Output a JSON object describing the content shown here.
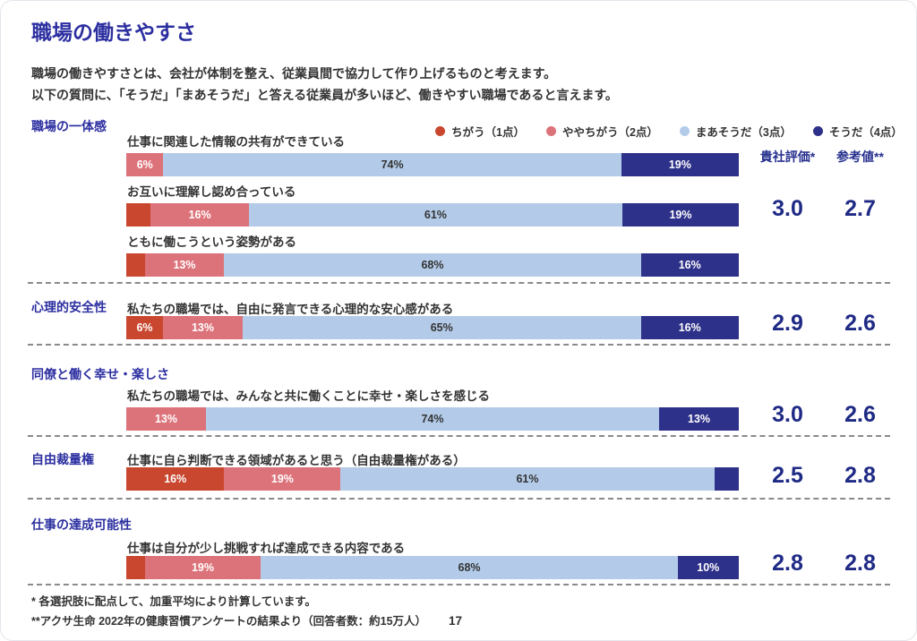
{
  "page": {
    "title": "職場の働きやすさ",
    "intro_line1": "職場の働きやすさとは、会社が体制を整え、従業員間で協力して作り上げるものと考えます。",
    "intro_line2": "以下の質問に、「そうだ」「まあそうだ」と答える従業員が多いほど、働きやすい職場であると言えます。",
    "footnote1": "* 各選択肢に配点して、加重平均により計算しています。",
    "footnote2": "**アクサ生命 2022年の健康習慣アンケートの結果より（回答者数：約15万人）",
    "page_number": "17"
  },
  "score_headers": {
    "company": "貴社評価*",
    "reference": "参考値**"
  },
  "sections": [
    {
      "label": "職場の一体感",
      "company_score": "3.0",
      "reference_score": "2.7"
    },
    {
      "label": "心理的安全性",
      "company_score": "2.9",
      "reference_score": "2.6"
    },
    {
      "label": "同僚と働く幸せ・楽しさ",
      "company_score": "3.0",
      "reference_score": "2.6"
    },
    {
      "label": "自由裁量権",
      "company_score": "2.5",
      "reference_score": "2.8"
    },
    {
      "label": "仕事の達成可能性",
      "company_score": "2.8",
      "reference_score": "2.8"
    }
  ],
  "chart_data": {
    "type": "bar",
    "orientation": "horizontal-stacked",
    "unit": "%",
    "xlim": [
      0,
      100
    ],
    "legend_position": "top-right",
    "series": [
      {
        "name": "ちがう（1点）",
        "color": "#c9472f"
      },
      {
        "name": "ややちがう（2点）",
        "color": "#dd737a"
      },
      {
        "name": "まあそうだ（3点）",
        "color": "#b3cbe8"
      },
      {
        "name": "そうだ（4点）",
        "color": "#2e3189"
      }
    ],
    "rows": [
      {
        "section": "職場の一体感",
        "question": "仕事に関連した情報の共有ができている",
        "values": [
          0,
          6,
          74,
          19
        ],
        "labels": [
          "",
          "6%",
          "74%",
          "19%"
        ]
      },
      {
        "section": "職場の一体感",
        "question": "お互いに理解し認め合っている",
        "values": [
          4,
          16,
          61,
          19
        ],
        "labels": [
          "",
          "16%",
          "61%",
          "19%"
        ]
      },
      {
        "section": "職場の一体感",
        "question": "ともに働こうという姿勢がある",
        "values": [
          3,
          13,
          68,
          16
        ],
        "labels": [
          "",
          "13%",
          "68%",
          "16%"
        ]
      },
      {
        "section": "心理的安全性",
        "question": "私たちの職場では、自由に発言できる心理的な安心感がある",
        "values": [
          6,
          13,
          65,
          16
        ],
        "labels": [
          "6%",
          "13%",
          "65%",
          "16%"
        ]
      },
      {
        "section": "同僚と働く幸せ・楽しさ",
        "question": "私たちの職場では、みんなと共に働くことに幸せ・楽しさを感じる",
        "values": [
          0,
          13,
          74,
          13
        ],
        "labels": [
          "",
          "13%",
          "74%",
          "13%"
        ]
      },
      {
        "section": "自由裁量権",
        "question": "仕事に自ら判断できる領域があると思う（自由裁量権がある）",
        "values": [
          16,
          19,
          61,
          4
        ],
        "labels": [
          "16%",
          "19%",
          "61%",
          ""
        ]
      },
      {
        "section": "仕事の達成可能性",
        "question": "仕事は自分が少し挑戦すれば達成できる内容である",
        "values": [
          3,
          19,
          68,
          10
        ],
        "labels": [
          "",
          "19%",
          "68%",
          "10%"
        ]
      }
    ],
    "scores": [
      {
        "section": "職場の一体感",
        "company": 3.0,
        "reference": 2.7
      },
      {
        "section": "心理的安全性",
        "company": 2.9,
        "reference": 2.6
      },
      {
        "section": "同僚と働く幸せ・楽しさ",
        "company": 3.0,
        "reference": 2.6
      },
      {
        "section": "自由裁量権",
        "company": 2.5,
        "reference": 2.8
      },
      {
        "section": "仕事の達成可能性",
        "company": 2.8,
        "reference": 2.8
      }
    ],
    "score_columns": [
      "貴社評価*",
      "参考値**"
    ]
  }
}
